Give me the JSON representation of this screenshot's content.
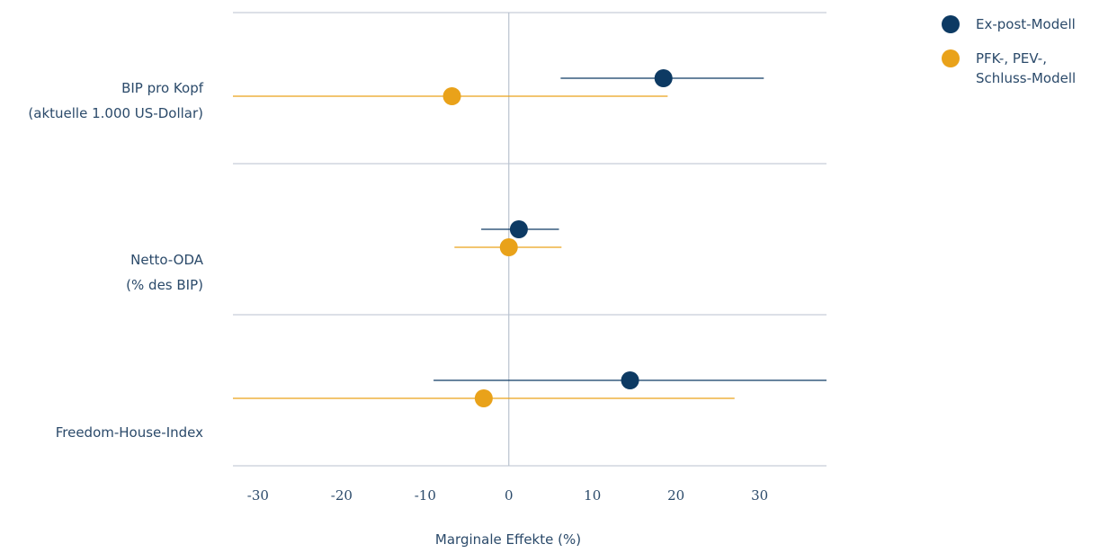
{
  "chart_data": {
    "type": "scatter",
    "xlabel": "Marginale Effekte (%)",
    "xlim": [
      -33,
      38
    ],
    "x_ticks": [
      "-30",
      "-20",
      "-10",
      "0",
      "10",
      "20",
      "30"
    ],
    "x_tick_values": [
      -30,
      -20,
      -10,
      0,
      10,
      20,
      30
    ],
    "categories": [
      {
        "lines": [
          "BIP pro Kopf",
          "(aktuelle 1.000 US-Dollar)"
        ]
      },
      {
        "lines": [
          "Netto-ODA",
          "(% des BIP)"
        ]
      },
      {
        "lines": [
          "Freedom-House-Index"
        ]
      }
    ],
    "series": [
      {
        "name": "Ex-post-Modell",
        "color": "#0d3a63",
        "points": [
          {
            "estimate": 18.5,
            "low": 6.2,
            "high": 30.5
          },
          {
            "estimate": 1.2,
            "low": -3.3,
            "high": 6.0
          },
          {
            "estimate": 14.5,
            "low": -9.0,
            "high": 38.0
          }
        ]
      },
      {
        "name": "PFK-, PEV-, Schluss-Modell",
        "legend_lines": [
          "PFK-, PEV-,",
          "Schluss-Modell"
        ],
        "color": "#e9a21a",
        "points": [
          {
            "estimate": -6.8,
            "low": -33.0,
            "high": 19.0
          },
          {
            "estimate": 0.0,
            "low": -6.5,
            "high": 6.3
          },
          {
            "estimate": -3.0,
            "low": -33.0,
            "high": 27.0
          }
        ]
      }
    ],
    "legend_position": "top-right",
    "grid": false
  }
}
